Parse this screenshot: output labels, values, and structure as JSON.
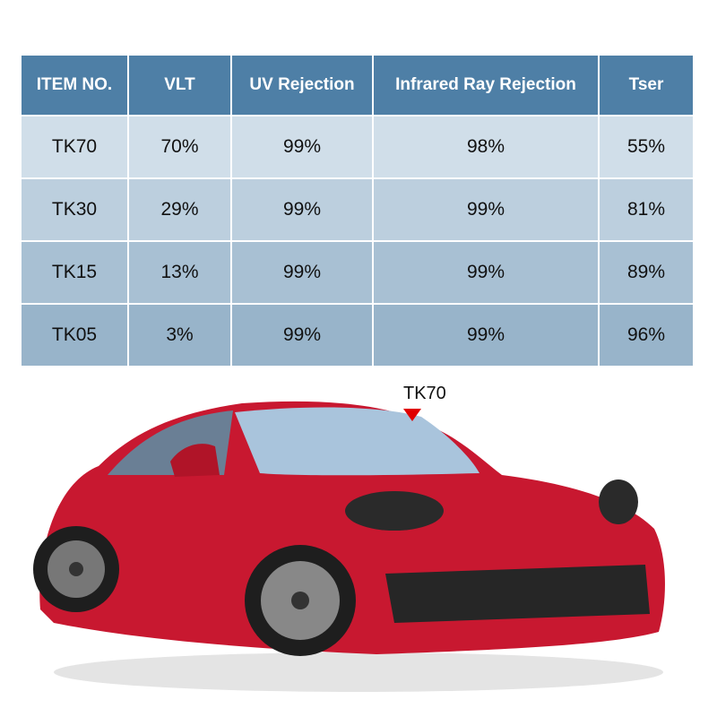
{
  "table": {
    "headers": [
      "ITEM NO.",
      "VLT",
      "UV Rejection",
      "Infrared Ray Rejection",
      "Tser"
    ],
    "rows": [
      [
        "TK70",
        "70%",
        "99%",
        "98%",
        "55%"
      ],
      [
        "TK30",
        "29%",
        "99%",
        "99%",
        "81%"
      ],
      [
        "TK15",
        "13%",
        "99%",
        "99%",
        "89%"
      ],
      [
        "TK05",
        "3%",
        "99%",
        "99%",
        "96%"
      ]
    ]
  },
  "annotation": {
    "label": "TK70"
  }
}
